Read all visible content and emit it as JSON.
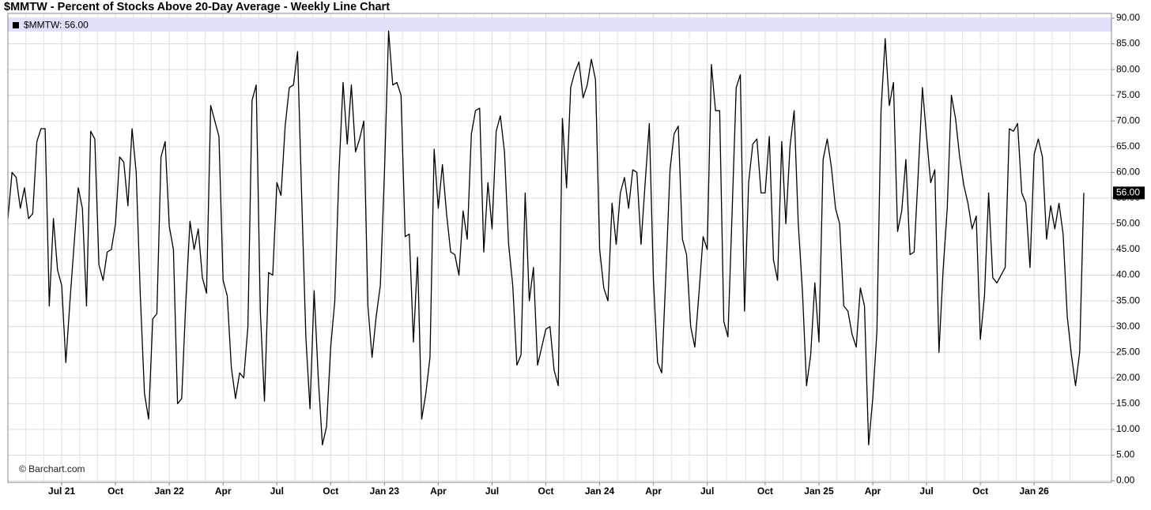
{
  "chart_data": {
    "type": "line",
    "title": "$MMTW - Percent of Stocks Above 20-Day Average - Weekly Line Chart",
    "watermark": "© Barchart.com",
    "last_value_label": "56.00",
    "ylim": [
      0,
      90
    ],
    "yticks": [
      {
        "value": 0,
        "label": "0.00"
      },
      {
        "value": 5,
        "label": "5.00"
      },
      {
        "value": 10,
        "label": "10.00"
      },
      {
        "value": 15,
        "label": "15.00"
      },
      {
        "value": 20,
        "label": "20.00"
      },
      {
        "value": 25,
        "label": "25.00"
      },
      {
        "value": 30,
        "label": "30.00"
      },
      {
        "value": 35,
        "label": "35.00"
      },
      {
        "value": 40,
        "label": "40.00"
      },
      {
        "value": 45,
        "label": "45.00"
      },
      {
        "value": 50,
        "label": "50.00"
      },
      {
        "value": 55,
        "label": "55.00"
      },
      {
        "value": 60,
        "label": "60.00"
      },
      {
        "value": 65,
        "label": "65.00"
      },
      {
        "value": 70,
        "label": "70.00"
      },
      {
        "value": 75,
        "label": "75.00"
      },
      {
        "value": 80,
        "label": "80.00"
      },
      {
        "value": 85,
        "label": "85.00"
      },
      {
        "value": 90,
        "label": "90.00"
      }
    ],
    "grid": true,
    "categories": [
      null,
      null,
      null,
      null,
      null,
      null,
      null,
      null,
      null,
      null,
      null,
      null,
      null,
      "Jul 21",
      null,
      null,
      null,
      null,
      null,
      null,
      null,
      null,
      null,
      null,
      null,
      null,
      "Oct",
      null,
      null,
      null,
      null,
      null,
      null,
      null,
      null,
      null,
      null,
      null,
      null,
      "Jan 22",
      null,
      null,
      null,
      null,
      null,
      null,
      null,
      null,
      null,
      null,
      null,
      null,
      "Apr",
      null,
      null,
      null,
      null,
      null,
      null,
      null,
      null,
      null,
      null,
      null,
      null,
      "Jul",
      null,
      null,
      null,
      null,
      null,
      null,
      null,
      null,
      null,
      null,
      null,
      null,
      "Oct",
      null,
      null,
      null,
      null,
      null,
      null,
      null,
      null,
      null,
      null,
      null,
      null,
      "Jan 23",
      null,
      null,
      null,
      null,
      null,
      null,
      null,
      null,
      null,
      null,
      null,
      null,
      "Apr",
      null,
      null,
      null,
      null,
      null,
      null,
      null,
      null,
      null,
      null,
      null,
      null,
      "Jul",
      null,
      null,
      null,
      null,
      null,
      null,
      null,
      null,
      null,
      null,
      null,
      null,
      "Oct",
      null,
      null,
      null,
      null,
      null,
      null,
      null,
      null,
      null,
      null,
      null,
      null,
      "Jan 24",
      null,
      null,
      null,
      null,
      null,
      null,
      null,
      null,
      null,
      null,
      null,
      null,
      "Apr",
      null,
      null,
      null,
      null,
      null,
      null,
      null,
      null,
      null,
      null,
      null,
      null,
      "Jul",
      null,
      null,
      null,
      null,
      null,
      null,
      null,
      null,
      null,
      null,
      null,
      null,
      null,
      "Oct",
      null,
      null,
      null,
      null,
      null,
      null,
      null,
      null,
      null,
      null,
      null,
      null,
      "Jan 25",
      null,
      null,
      null,
      null,
      null,
      null,
      null,
      null,
      null,
      null,
      null,
      null,
      "Apr",
      null,
      null,
      null,
      null,
      null,
      null,
      null,
      null,
      null,
      null,
      null,
      null,
      "Jul",
      null,
      null,
      null,
      null,
      null,
      null,
      null,
      null,
      null,
      null,
      null,
      null,
      "Oct",
      null,
      null,
      null,
      null,
      null,
      null,
      null,
      null,
      null,
      null,
      null,
      null,
      "Jan 26",
      null,
      null,
      null,
      null,
      null,
      null,
      null,
      null,
      null,
      null,
      null,
      null
    ],
    "series": [
      {
        "name": "$MMTW: 56.00",
        "color": "#000000",
        "values": [
          51,
          60,
          59,
          53,
          57,
          51,
          52,
          66,
          68.5,
          68.5,
          34,
          51,
          41,
          38,
          23,
          35,
          46,
          57,
          53,
          34,
          68,
          66.5,
          42,
          39,
          44.5,
          45,
          50,
          63,
          62,
          53.5,
          68.5,
          60,
          36,
          17,
          12,
          31.5,
          32.5,
          63,
          66,
          49.5,
          45,
          15,
          16,
          35,
          50.5,
          45,
          49,
          39.5,
          36.5,
          73,
          70,
          67,
          39,
          36,
          22,
          16,
          21,
          20,
          30,
          74,
          77,
          33,
          15.5,
          40.5,
          40,
          58,
          55.5,
          69,
          76.5,
          77,
          83.5,
          55,
          28,
          14,
          37,
          20,
          7,
          10.5,
          26,
          35,
          60,
          77.5,
          65.5,
          77,
          64,
          66.5,
          70,
          34,
          24,
          32,
          38,
          60,
          87.5,
          77,
          77.5,
          75,
          47.5,
          48,
          27,
          43.5,
          12,
          17,
          24,
          64.5,
          53,
          61.5,
          52,
          44.5,
          44,
          40,
          52.5,
          47,
          67.5,
          72,
          72.5,
          44.5,
          58,
          49,
          68,
          71,
          64,
          46,
          38,
          22.5,
          24.5,
          56,
          35,
          41.5,
          22.5,
          26,
          29.5,
          30,
          21.5,
          18.5,
          70.5,
          57,
          76.5,
          79.5,
          81.5,
          74.5,
          77,
          82,
          78,
          45,
          37.5,
          35,
          54,
          46,
          56,
          59,
          53,
          60.5,
          60,
          46,
          58,
          69.5,
          39,
          23,
          21,
          40,
          60.5,
          67.5,
          69,
          47,
          44,
          30,
          26,
          36.5,
          47.5,
          45,
          81,
          72,
          72,
          31,
          28,
          52,
          76.5,
          79,
          33,
          58,
          65.5,
          66.5,
          56,
          56,
          67,
          43,
          39,
          66,
          50,
          65,
          72,
          50,
          37,
          18.5,
          24.5,
          38.5,
          27,
          62.5,
          66.5,
          61,
          53,
          50,
          34,
          33,
          28.5,
          26,
          37.5,
          34,
          7,
          16,
          29,
          72,
          86,
          73,
          77.5,
          48.5,
          52.5,
          62.5,
          44,
          44.5,
          60,
          76.5,
          67,
          58,
          60.5,
          25,
          41,
          53,
          75,
          70.5,
          63,
          57.5,
          54,
          49,
          51.5,
          27.5,
          36,
          56,
          39.5,
          38.5,
          40,
          41.5,
          68.5,
          68,
          69.5,
          56,
          54,
          41.5,
          63.5,
          66.5,
          63,
          47,
          53.5,
          49,
          54,
          48,
          32,
          24.5,
          18.5,
          25,
          56
        ]
      }
    ]
  }
}
